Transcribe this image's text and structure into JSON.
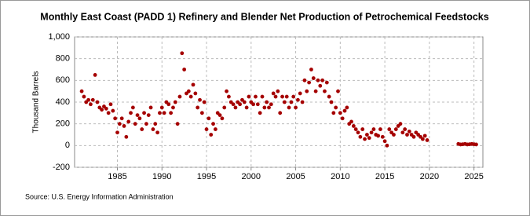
{
  "chart_data": {
    "type": "scatter",
    "title": "Monthly East Coast (PADD 1) Refinery and Blender Net Production of Petrochemical Feedstocks",
    "ylabel": "Thousand Barrels",
    "source": "Source: U.S. Energy Information Administration",
    "color": "#a50000",
    "grid": true,
    "xlim": [
      1980.2,
      2026
    ],
    "ylim": [
      -200,
      1000
    ],
    "xticks": [
      1985,
      1990,
      1995,
      2000,
      2005,
      2010,
      2015,
      2020,
      2025
    ],
    "yticks": [
      -200,
      0,
      200,
      400,
      600,
      800,
      {
        "value": 1000,
        "label": "1,000"
      }
    ],
    "x": [
      1981,
      1981.25,
      1981.5,
      1981.75,
      1982,
      1982.25,
      1982.5,
      1982.75,
      1983,
      1983.25,
      1983.5,
      1983.75,
      1984,
      1984.25,
      1984.5,
      1984.75,
      1985,
      1985.25,
      1985.5,
      1985.75,
      1986,
      1986.25,
      1986.5,
      1986.75,
      1987,
      1987.25,
      1987.5,
      1987.75,
      1988,
      1988.25,
      1988.5,
      1988.75,
      1989,
      1989.25,
      1989.5,
      1989.75,
      1990,
      1990.25,
      1990.5,
      1990.75,
      1991,
      1991.25,
      1991.5,
      1991.75,
      1992,
      1992.25,
      1992.5,
      1992.75,
      1993,
      1993.25,
      1993.5,
      1993.75,
      1994,
      1994.25,
      1994.5,
      1994.75,
      1995,
      1995.25,
      1995.5,
      1995.75,
      1996,
      1996.25,
      1996.5,
      1996.75,
      1997,
      1997.25,
      1997.5,
      1997.75,
      1998,
      1998.25,
      1998.5,
      1998.75,
      1999,
      1999.25,
      1999.5,
      1999.75,
      2000,
      2000.25,
      2000.5,
      2000.75,
      2001,
      2001.25,
      2001.5,
      2001.75,
      2002,
      2002.25,
      2002.5,
      2002.75,
      2003,
      2003.25,
      2003.5,
      2003.75,
      2004,
      2004.25,
      2004.5,
      2004.75,
      2005,
      2005.25,
      2005.5,
      2005.75,
      2006,
      2006.25,
      2006.5,
      2006.75,
      2007,
      2007.25,
      2007.5,
      2007.75,
      2008,
      2008.25,
      2008.5,
      2008.75,
      2009,
      2009.25,
      2009.5,
      2009.75,
      2010,
      2010.25,
      2010.5,
      2010.75,
      2011,
      2011.25,
      2011.5,
      2011.75,
      2012,
      2012.25,
      2012.5,
      2012.75,
      2013,
      2013.25,
      2013.5,
      2013.75,
      2014,
      2014.25,
      2014.5,
      2014.75,
      2015,
      2015.25,
      2015.5,
      2015.75,
      2016,
      2016.25,
      2016.5,
      2016.75,
      2017,
      2017.25,
      2017.5,
      2017.75,
      2018,
      2018.25,
      2018.5,
      2018.75,
      2019,
      2019.25,
      2019.5,
      2019.75,
      2023.25,
      2023.5,
      2023.75,
      2024,
      2024.25,
      2024.5,
      2024.75,
      2025,
      2025.25
    ],
    "values": [
      500,
      450,
      400,
      420,
      380,
      420,
      650,
      400,
      350,
      330,
      360,
      340,
      300,
      380,
      320,
      250,
      120,
      200,
      250,
      180,
      80,
      220,
      300,
      350,
      200,
      280,
      250,
      150,
      300,
      200,
      280,
      350,
      150,
      200,
      120,
      300,
      350,
      300,
      400,
      380,
      300,
      350,
      400,
      200,
      450,
      850,
      700,
      480,
      500,
      450,
      560,
      480,
      350,
      420,
      300,
      400,
      150,
      250,
      100,
      200,
      150,
      300,
      280,
      250,
      350,
      500,
      450,
      400,
      380,
      350,
      400,
      380,
      420,
      400,
      350,
      450,
      400,
      380,
      450,
      380,
      300,
      450,
      350,
      400,
      350,
      380,
      480,
      450,
      500,
      300,
      450,
      400,
      450,
      350,
      400,
      450,
      350,
      420,
      480,
      400,
      600,
      500,
      580,
      700,
      620,
      500,
      600,
      550,
      600,
      500,
      580,
      450,
      400,
      300,
      350,
      500,
      300,
      250,
      320,
      350,
      200,
      220,
      180,
      150,
      120,
      80,
      150,
      60,
      100,
      70,
      120,
      150,
      100,
      90,
      150,
      80,
      40,
      0,
      150,
      120,
      100,
      150,
      180,
      200,
      120,
      150,
      100,
      130,
      100,
      80,
      120,
      100,
      80,
      60,
      90,
      50,
      15,
      10,
      12,
      15,
      10,
      12,
      15,
      12,
      10
    ]
  }
}
